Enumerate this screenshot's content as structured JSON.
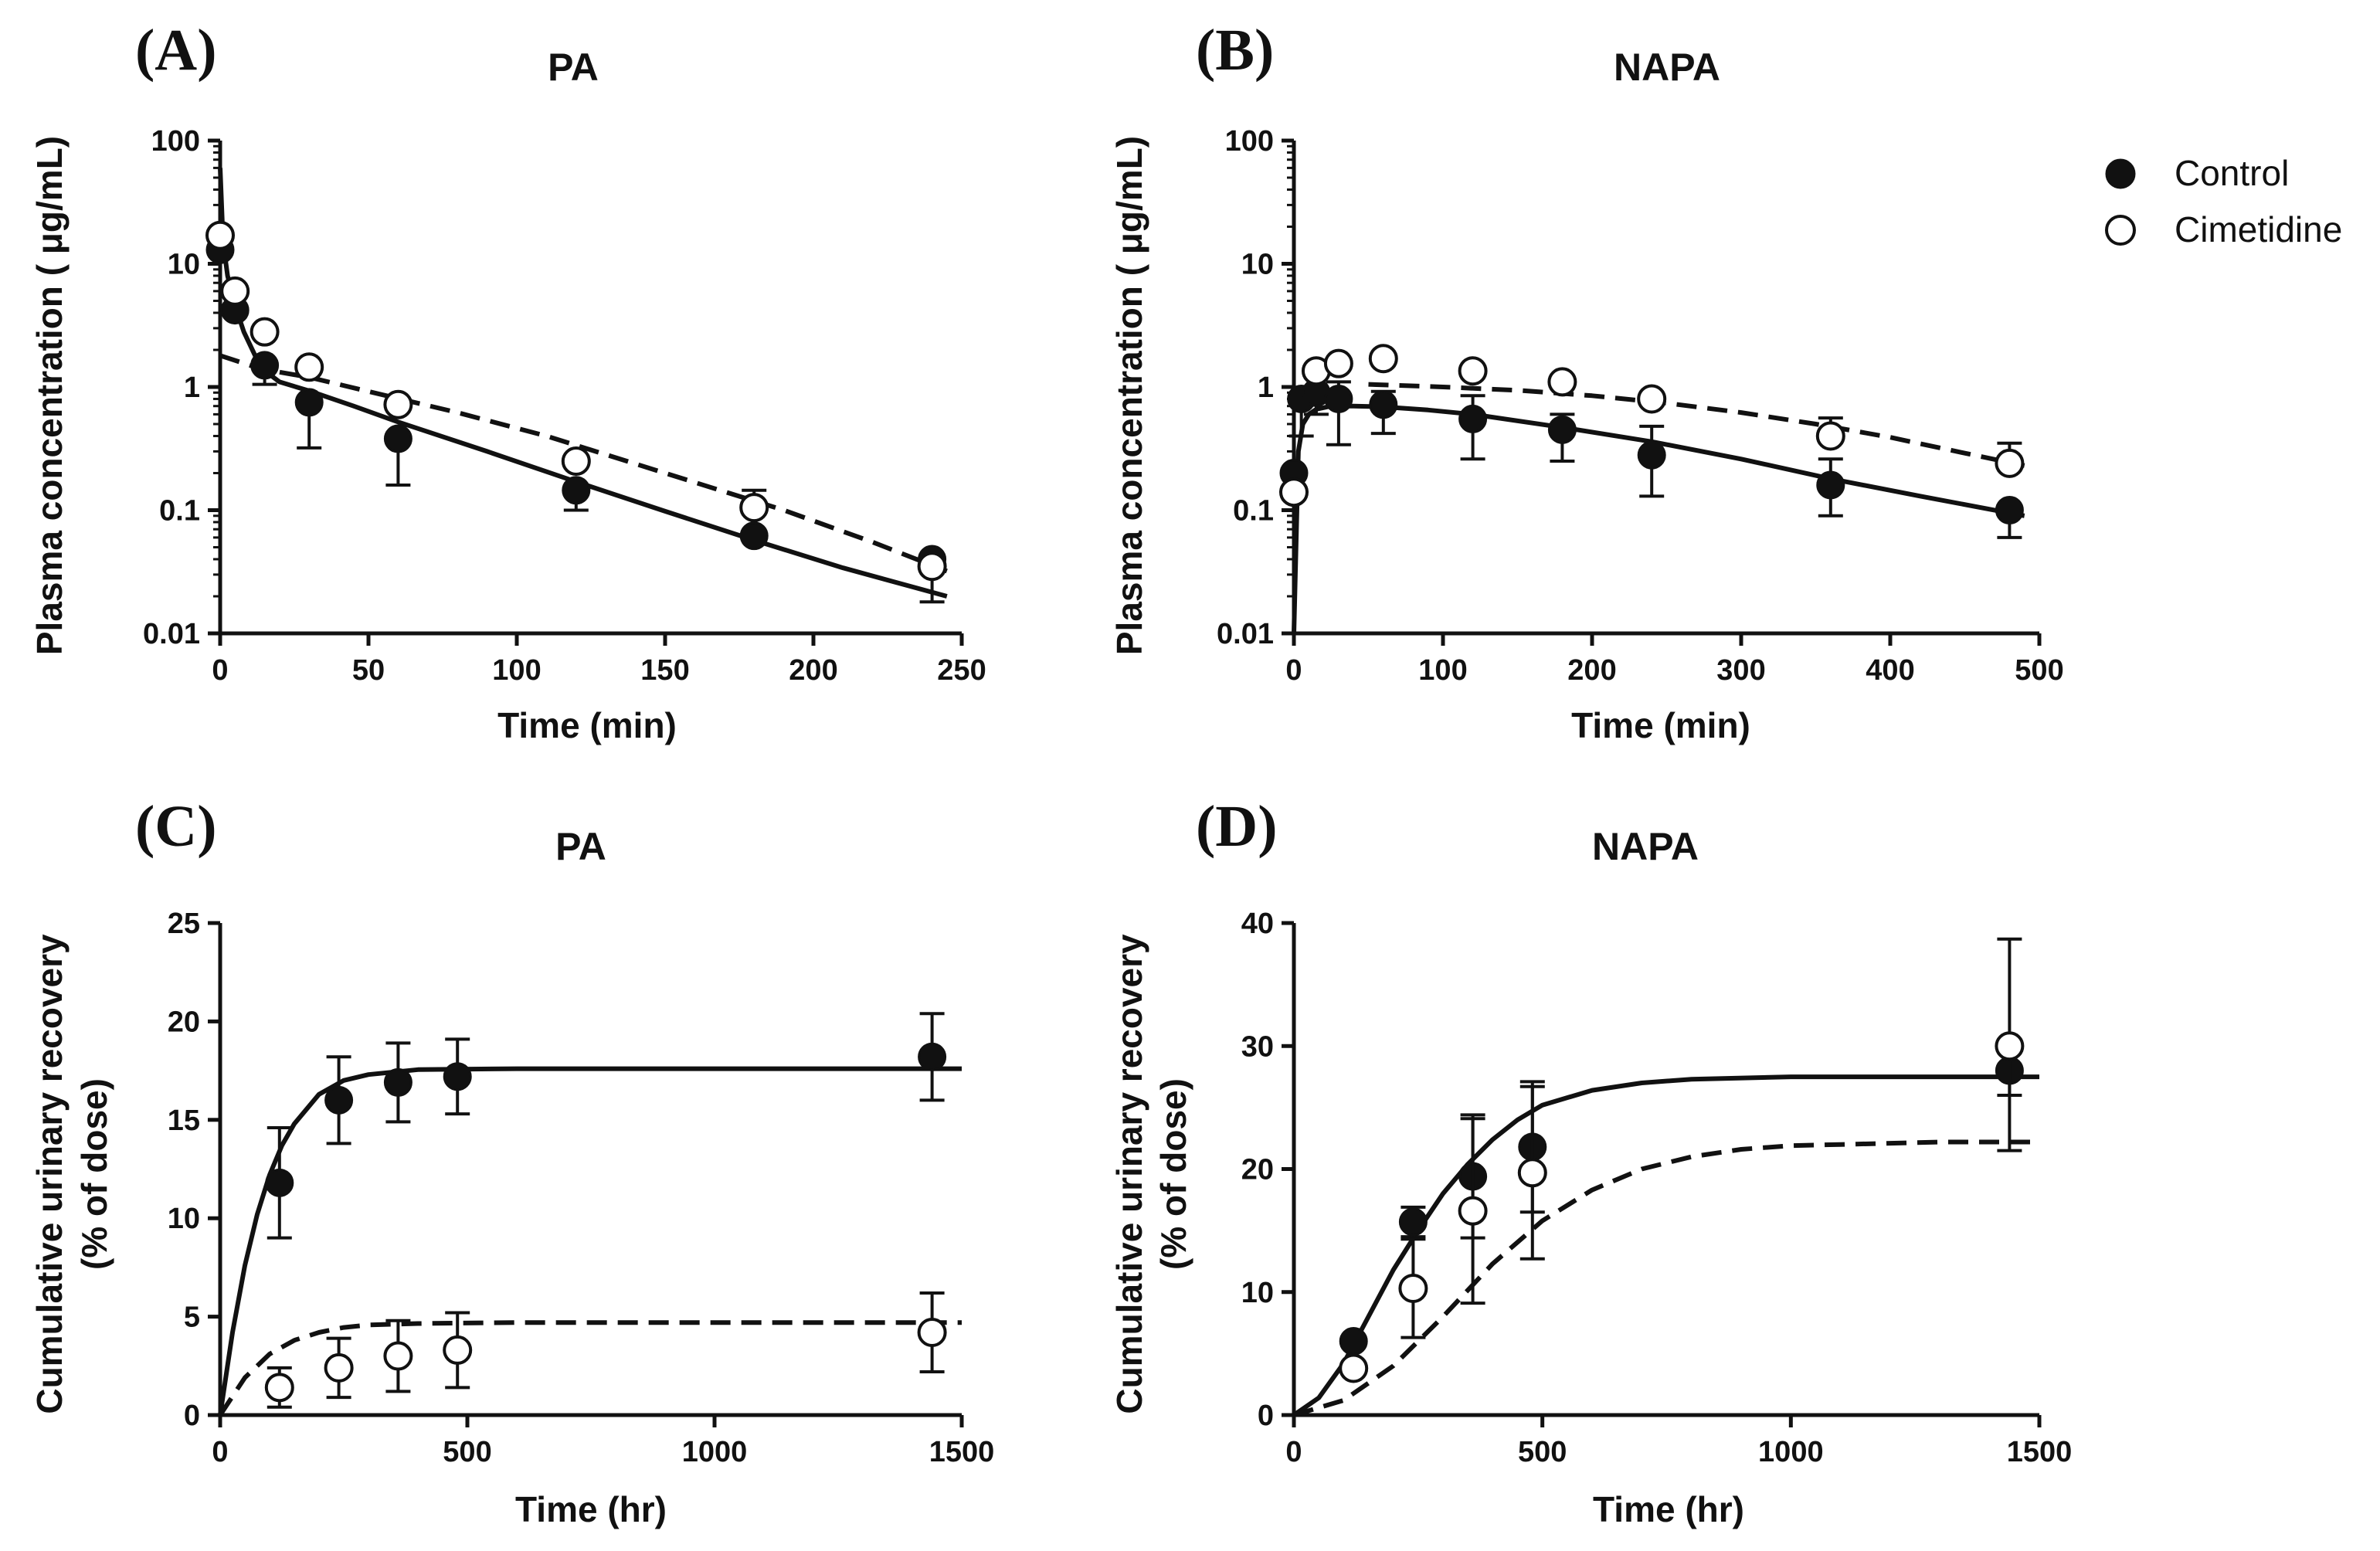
{
  "legend": {
    "items": [
      {
        "label": "Control",
        "marker": "filled-circle",
        "line": "solid"
      },
      {
        "label": "Cimetidine",
        "marker": "open-circle",
        "line": "dashed"
      }
    ]
  },
  "colors": {
    "ink": "#111111",
    "background": "#ffffff"
  },
  "chart_data": [
    {
      "id": "A",
      "type": "scatter",
      "letter": "(A)",
      "title": "PA",
      "xlabel": "Time (min)",
      "ylabel": "Plasma concentration ( μg/mL)",
      "yscale": "log",
      "xlim": [
        0,
        250
      ],
      "ylim": [
        0.01,
        100
      ],
      "xticks": [
        0,
        50,
        100,
        150,
        200,
        250
      ],
      "yticks": [
        0.01,
        0.1,
        1,
        10,
        100
      ],
      "ytick_labels": [
        "0.01",
        "0.1",
        "1",
        "10",
        "100"
      ],
      "series": [
        {
          "name": "Control",
          "style": "filled",
          "x": [
            0,
            5,
            15,
            30,
            60,
            120,
            180,
            240
          ],
          "y": [
            13,
            4.2,
            1.5,
            0.75,
            0.38,
            0.145,
            0.062,
            0.04
          ],
          "err": [
            [
              0,
              0
            ],
            [
              0,
              0
            ],
            [
              0.45,
              0
            ],
            [
              0.43,
              0
            ],
            [
              0.22,
              0
            ],
            [
              0.045,
              0
            ],
            [
              0,
              0
            ],
            [
              0.022,
              0
            ]
          ],
          "fit": {
            "x": [
              0,
              1,
              2.5,
              5,
              8,
              12,
              16,
              20,
              30,
              45,
              60,
              90,
              120,
              150,
              180,
              210,
              245
            ],
            "y": [
              60,
              15,
              8,
              4.6,
              2.8,
              1.75,
              1.3,
              1.1,
              0.93,
              0.7,
              0.52,
              0.3,
              0.17,
              0.098,
              0.057,
              0.034,
              0.02
            ]
          }
        },
        {
          "name": "Cimetidine",
          "style": "open",
          "x": [
            0,
            5,
            15,
            30,
            60,
            120,
            180,
            240
          ],
          "y": [
            17,
            6,
            2.8,
            1.45,
            0.72,
            0.25,
            0.105,
            0.035
          ],
          "err": [
            [
              0,
              0
            ],
            [
              0,
              0
            ],
            [
              0,
              0
            ],
            [
              0,
              0
            ],
            [
              0,
              0
            ],
            [
              0,
              0
            ],
            [
              0,
              0.04
            ],
            [
              0,
              0
            ]
          ],
          "fit": {
            "x": [
              0,
              10,
              20,
              30,
              50,
              80,
              110,
              150,
              190,
              220,
              245
            ],
            "y": [
              1.8,
              1.5,
              1.32,
              1.2,
              0.92,
              0.62,
              0.4,
              0.2,
              0.1,
              0.055,
              0.032
            ]
          }
        }
      ]
    },
    {
      "id": "B",
      "type": "scatter",
      "letter": "(B)",
      "title": "NAPA",
      "xlabel": "Time (min)",
      "ylabel": "Plasma concentration ( μg/mL)",
      "yscale": "log",
      "xlim": [
        0,
        500
      ],
      "ylim": [
        0.01,
        100
      ],
      "xticks": [
        0,
        100,
        200,
        300,
        400,
        500
      ],
      "yticks": [
        0.01,
        0.1,
        1,
        10,
        100
      ],
      "ytick_labels": [
        "0.01",
        "0.1",
        "1",
        "10",
        "100"
      ],
      "series": [
        {
          "name": "Control",
          "style": "filled",
          "x": [
            0,
            5,
            15,
            30,
            60,
            120,
            180,
            240,
            360,
            480
          ],
          "y": [
            0.2,
            0.8,
            0.9,
            0.8,
            0.72,
            0.55,
            0.45,
            0.28,
            0.16,
            0.1
          ],
          "err": [
            [
              0.19,
              0
            ],
            [
              0.4,
              0
            ],
            [
              0.3,
              0.3
            ],
            [
              0.46,
              0.3
            ],
            [
              0.3,
              0.2
            ],
            [
              0.29,
              0.3
            ],
            [
              0.2,
              0.15
            ],
            [
              0.15,
              0.2
            ],
            [
              0.07,
              0.1
            ],
            [
              0.04,
              0
            ]
          ],
          "fit": {
            "x": [
              0,
              3,
              6,
              10,
              15,
              25,
              40,
              60,
              90,
              120,
              180,
              240,
              300,
              360,
              420,
              490
            ],
            "y": [
              0.01,
              0.3,
              0.5,
              0.6,
              0.66,
              0.7,
              0.7,
              0.69,
              0.65,
              0.6,
              0.47,
              0.36,
              0.26,
              0.18,
              0.13,
              0.09
            ]
          }
        },
        {
          "name": "Cimetidine",
          "style": "open",
          "x": [
            0,
            15,
            30,
            60,
            120,
            180,
            240,
            360,
            480
          ],
          "y": [
            0.14,
            1.35,
            1.55,
            1.7,
            1.35,
            1.1,
            0.8,
            0.4,
            0.24
          ],
          "err": [
            [
              0,
              0
            ],
            [
              0,
              0
            ],
            [
              0,
              0
            ],
            [
              0,
              0
            ],
            [
              0,
              0
            ],
            [
              0,
              0
            ],
            [
              0,
              0
            ],
            [
              0,
              0.16
            ],
            [
              0,
              0.11
            ]
          ],
          "fit": {
            "x": [
              50,
              100,
              150,
              200,
              250,
              300,
              350,
              400,
              450,
              490
            ],
            "y": [
              1.05,
              1.0,
              0.94,
              0.85,
              0.74,
              0.62,
              0.5,
              0.39,
              0.29,
              0.23
            ]
          }
        }
      ]
    },
    {
      "id": "C",
      "type": "scatter",
      "letter": "(C)",
      "title": "PA",
      "xlabel": "Time (hr)",
      "ylabel": [
        "Cumulative urinary recovery",
        "(% of dose)"
      ],
      "yscale": "linear",
      "xlim": [
        0,
        1500
      ],
      "ylim": [
        0,
        25
      ],
      "xticks": [
        0,
        500,
        1000,
        1500
      ],
      "yticks": [
        0,
        5,
        10,
        15,
        20,
        25
      ],
      "ytick_labels": [
        "0",
        "5",
        "10",
        "15",
        "20",
        "25"
      ],
      "series": [
        {
          "name": "Control",
          "style": "filled",
          "x": [
            120,
            240,
            360,
            480,
            1440
          ],
          "y": [
            11.8,
            16,
            16.9,
            17.2,
            18.2
          ],
          "err": [
            [
              2.8,
              2.8
            ],
            [
              2.2,
              2.2
            ],
            [
              2.0,
              2.0
            ],
            [
              1.9,
              1.9
            ],
            [
              2.2,
              2.2
            ]
          ],
          "fit": {
            "x": [
              0,
              25,
              50,
              75,
              100,
              125,
              150,
              200,
              250,
              300,
              400,
              600,
              1000,
              1500
            ],
            "y": [
              0,
              4.2,
              7.6,
              10.2,
              12.2,
              13.7,
              14.8,
              16.3,
              17.0,
              17.3,
              17.55,
              17.6,
              17.6,
              17.6
            ]
          }
        },
        {
          "name": "Cimetidine",
          "style": "open",
          "x": [
            120,
            240,
            360,
            480,
            1440
          ],
          "y": [
            1.4,
            2.4,
            3.0,
            3.3,
            4.2
          ],
          "err": [
            [
              1.0,
              1.0
            ],
            [
              1.5,
              1.5
            ],
            [
              1.8,
              1.8
            ],
            [
              1.9,
              1.9
            ],
            [
              2.0,
              2.0
            ]
          ],
          "fit": {
            "x": [
              0,
              50,
              100,
              150,
              200,
              250,
              300,
              400,
              600,
              1000,
              1500
            ],
            "y": [
              0,
              1.9,
              3.1,
              3.8,
              4.2,
              4.45,
              4.58,
              4.65,
              4.7,
              4.7,
              4.7
            ]
          }
        }
      ]
    },
    {
      "id": "D",
      "type": "scatter",
      "letter": "(D)",
      "title": "NAPA",
      "xlabel": "Time (hr)",
      "ylabel": [
        "Cumulative urinary recovery",
        "(% of dose)"
      ],
      "yscale": "linear",
      "xlim": [
        0,
        1500
      ],
      "ylim": [
        0,
        40
      ],
      "xticks": [
        0,
        500,
        1000,
        1500
      ],
      "yticks": [
        0,
        10,
        20,
        30,
        40
      ],
      "ytick_labels": [
        "0",
        "10",
        "20",
        "30",
        "40"
      ],
      "series": [
        {
          "name": "Control",
          "style": "filled",
          "x": [
            120,
            240,
            360,
            480,
            1440
          ],
          "y": [
            6,
            15.7,
            19.4,
            21.8,
            28
          ],
          "err": [
            [
              0,
              0
            ],
            [
              1.2,
              1.2
            ],
            [
              5,
              5
            ],
            [
              5.3,
              5.3
            ],
            [
              6.5,
              0
            ]
          ],
          "fit": {
            "x": [
              0,
              50,
              100,
              150,
              200,
              250,
              300,
              350,
              400,
              450,
              500,
              600,
              700,
              800,
              1000,
              1200,
              1500
            ],
            "y": [
              0,
              1.4,
              4.2,
              8.0,
              11.8,
              15.0,
              18.0,
              20.4,
              22.4,
              24.0,
              25.2,
              26.4,
              27.0,
              27.3,
              27.5,
              27.5,
              27.5
            ]
          }
        },
        {
          "name": "Cimetidine",
          "style": "open",
          "x": [
            120,
            240,
            360,
            480,
            1440
          ],
          "y": [
            3.8,
            10.3,
            16.6,
            19.7,
            30
          ],
          "err": [
            [
              0,
              0
            ],
            [
              4,
              4
            ],
            [
              7.5,
              7.5
            ],
            [
              7,
              7
            ],
            [
              4,
              8.7
            ]
          ],
          "fit": {
            "x": [
              0,
              100,
              200,
              300,
              400,
              500,
              600,
              700,
              800,
              900,
              1000,
              1100,
              1200,
              1300,
              1500
            ],
            "y": [
              0,
              1.2,
              4.0,
              8.0,
              12.3,
              15.8,
              18.3,
              20.0,
              21.0,
              21.6,
              21.9,
              22.0,
              22.1,
              22.2,
              22.2
            ]
          }
        }
      ]
    }
  ]
}
